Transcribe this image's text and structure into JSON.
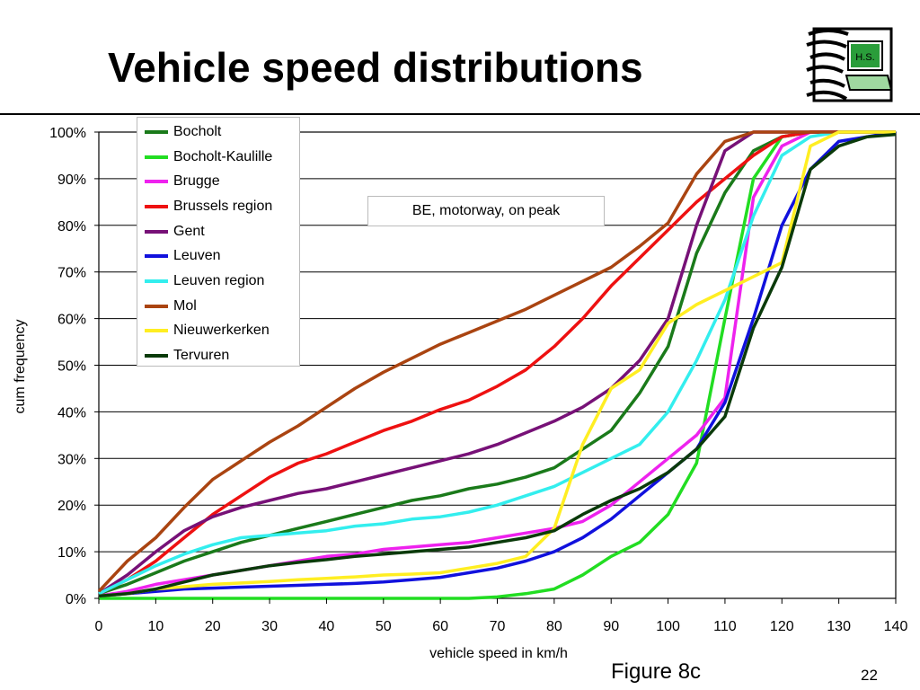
{
  "slide": {
    "title": "Vehicle speed distributions",
    "figure_caption": "Figure 8c",
    "page_number": "22",
    "logo_text": "H.S."
  },
  "chart_data": {
    "type": "line",
    "annotation": "BE, motorway, on peak",
    "xlabel": "vehicle speed in km/h",
    "ylabel": "cum frequency",
    "xlim": [
      0,
      140
    ],
    "ylim": [
      0,
      100
    ],
    "xticks": [
      0,
      10,
      20,
      30,
      40,
      50,
      60,
      70,
      80,
      90,
      100,
      110,
      120,
      130,
      140
    ],
    "yticks": [
      0,
      10,
      20,
      30,
      40,
      50,
      60,
      70,
      80,
      90,
      100
    ],
    "ytick_labels": [
      "0%",
      "10%",
      "20%",
      "30%",
      "40%",
      "50%",
      "60%",
      "70%",
      "80%",
      "90%",
      "100%"
    ],
    "grid": "horizontal",
    "legend_position": "top-left",
    "series": [
      {
        "name": "Bocholt",
        "color": "#1a7a1a",
        "x": [
          0,
          5,
          10,
          15,
          20,
          25,
          30,
          35,
          40,
          45,
          50,
          55,
          60,
          65,
          70,
          75,
          80,
          85,
          90,
          95,
          100,
          105,
          110,
          115,
          120,
          125,
          130,
          135,
          140
        ],
        "y": [
          1,
          3,
          5.5,
          8,
          10,
          12,
          13.5,
          15,
          16.5,
          18,
          19.5,
          21,
          22,
          23.5,
          24.5,
          26,
          28,
          32,
          36,
          44,
          54,
          74,
          87,
          96,
          99,
          100,
          100,
          100,
          100
        ]
      },
      {
        "name": "Bocholt-Kaulille",
        "color": "#22dd22",
        "x": [
          0,
          5,
          10,
          15,
          20,
          25,
          30,
          35,
          40,
          45,
          50,
          55,
          60,
          65,
          70,
          75,
          80,
          85,
          90,
          95,
          100,
          105,
          110,
          115,
          120,
          125,
          130,
          135,
          140
        ],
        "y": [
          0,
          0,
          0,
          0,
          0,
          0,
          0,
          0,
          0,
          0,
          0,
          0,
          0,
          0,
          0.3,
          1,
          2,
          5,
          9,
          12,
          18,
          29,
          60,
          90,
          99,
          100,
          100,
          100,
          100
        ]
      },
      {
        "name": "Brugge",
        "color": "#ee22ee",
        "x": [
          0,
          5,
          10,
          15,
          20,
          25,
          30,
          35,
          40,
          45,
          50,
          55,
          60,
          65,
          70,
          75,
          80,
          85,
          90,
          95,
          100,
          105,
          110,
          115,
          120,
          125,
          130,
          135,
          140
        ],
        "y": [
          0.5,
          1.5,
          3,
          4,
          5,
          6,
          7,
          8,
          9,
          9.5,
          10.5,
          11,
          11.5,
          12,
          13,
          14,
          15,
          16.5,
          20,
          25,
          30,
          35,
          43,
          86,
          97,
          100,
          100,
          100,
          100
        ]
      },
      {
        "name": "Brussels region",
        "color": "#ee1111",
        "x": [
          0,
          5,
          10,
          15,
          20,
          25,
          30,
          35,
          40,
          45,
          50,
          55,
          60,
          65,
          70,
          75,
          80,
          85,
          90,
          95,
          100,
          105,
          110,
          115,
          120,
          125,
          130,
          135,
          140
        ],
        "y": [
          1,
          4,
          8,
          13,
          18,
          22,
          26,
          29,
          31,
          33.5,
          36,
          38,
          40.5,
          42.5,
          45.5,
          49,
          54,
          60,
          67,
          73,
          79,
          85,
          90,
          95,
          99,
          100,
          100,
          100,
          100
        ]
      },
      {
        "name": "Gent",
        "color": "#771177",
        "x": [
          0,
          5,
          10,
          15,
          20,
          25,
          30,
          35,
          40,
          45,
          50,
          55,
          60,
          65,
          70,
          75,
          80,
          85,
          90,
          95,
          100,
          105,
          110,
          115,
          120,
          125,
          130,
          135,
          140
        ],
        "y": [
          1,
          5,
          10,
          14.5,
          17.5,
          19.5,
          21,
          22.5,
          23.5,
          25,
          26.5,
          28,
          29.5,
          31,
          33,
          35.5,
          38,
          41,
          45,
          51,
          60,
          80,
          96,
          100,
          100,
          100,
          100,
          100,
          100
        ]
      },
      {
        "name": "Leuven",
        "color": "#1111dd",
        "x": [
          0,
          5,
          10,
          15,
          20,
          25,
          30,
          35,
          40,
          45,
          50,
          55,
          60,
          65,
          70,
          75,
          80,
          85,
          90,
          95,
          100,
          105,
          110,
          115,
          120,
          125,
          130,
          135,
          140
        ],
        "y": [
          0.5,
          1,
          1.5,
          2,
          2.2,
          2.4,
          2.6,
          2.8,
          3,
          3.2,
          3.5,
          4,
          4.5,
          5.5,
          6.5,
          8,
          10,
          13,
          17,
          22,
          27,
          32,
          42,
          60,
          80,
          92,
          98,
          99,
          100
        ]
      },
      {
        "name": "Leuven region",
        "color": "#33eeee",
        "x": [
          0,
          5,
          10,
          15,
          20,
          25,
          30,
          35,
          40,
          45,
          50,
          55,
          60,
          65,
          70,
          75,
          80,
          85,
          90,
          95,
          100,
          105,
          110,
          115,
          120,
          125,
          130,
          135,
          140
        ],
        "y": [
          1,
          4,
          7,
          9.5,
          11.5,
          13,
          13.5,
          14,
          14.5,
          15.5,
          16,
          17,
          17.5,
          18.5,
          20,
          22,
          24,
          27,
          30,
          33,
          40,
          51,
          64,
          82,
          95,
          99,
          100,
          100,
          100
        ]
      },
      {
        "name": "Mol",
        "color": "#aa4411",
        "x": [
          0,
          5,
          10,
          15,
          20,
          25,
          30,
          35,
          40,
          45,
          50,
          55,
          60,
          65,
          70,
          75,
          80,
          85,
          90,
          95,
          100,
          105,
          110,
          115,
          120,
          125,
          130,
          135,
          140
        ],
        "y": [
          1.5,
          8,
          13,
          19.5,
          25.5,
          29.5,
          33.5,
          37,
          41,
          45,
          48.5,
          51.5,
          54.5,
          57,
          59.5,
          62,
          65,
          68,
          71,
          75.5,
          80.5,
          91,
          98,
          100,
          100,
          100,
          100,
          100,
          100
        ]
      },
      {
        "name": "Nieuwerkerken",
        "color": "#ffee22",
        "x": [
          0,
          5,
          10,
          15,
          20,
          25,
          30,
          35,
          40,
          45,
          50,
          55,
          60,
          65,
          70,
          75,
          80,
          85,
          90,
          95,
          100,
          105,
          110,
          115,
          120,
          125,
          130,
          135,
          140
        ],
        "y": [
          0.5,
          1,
          2,
          2.5,
          3,
          3.3,
          3.6,
          4,
          4.3,
          4.6,
          5,
          5.2,
          5.5,
          6.5,
          7.5,
          9,
          15,
          33,
          45,
          49,
          59,
          63,
          66,
          69,
          72,
          97,
          100,
          100,
          100
        ]
      },
      {
        "name": "Tervuren",
        "color": "#0a3a0a",
        "x": [
          0,
          5,
          10,
          15,
          20,
          25,
          30,
          35,
          40,
          45,
          50,
          55,
          60,
          65,
          70,
          75,
          80,
          85,
          90,
          95,
          100,
          105,
          110,
          115,
          120,
          125,
          130,
          135,
          140
        ],
        "y": [
          0.5,
          1,
          2,
          3.5,
          5,
          6,
          7,
          7.7,
          8.3,
          9,
          9.5,
          10,
          10.5,
          11,
          12,
          13,
          14.5,
          18,
          21,
          23.5,
          27,
          32,
          39,
          58,
          71,
          92,
          97,
          99,
          99.5
        ]
      }
    ]
  }
}
